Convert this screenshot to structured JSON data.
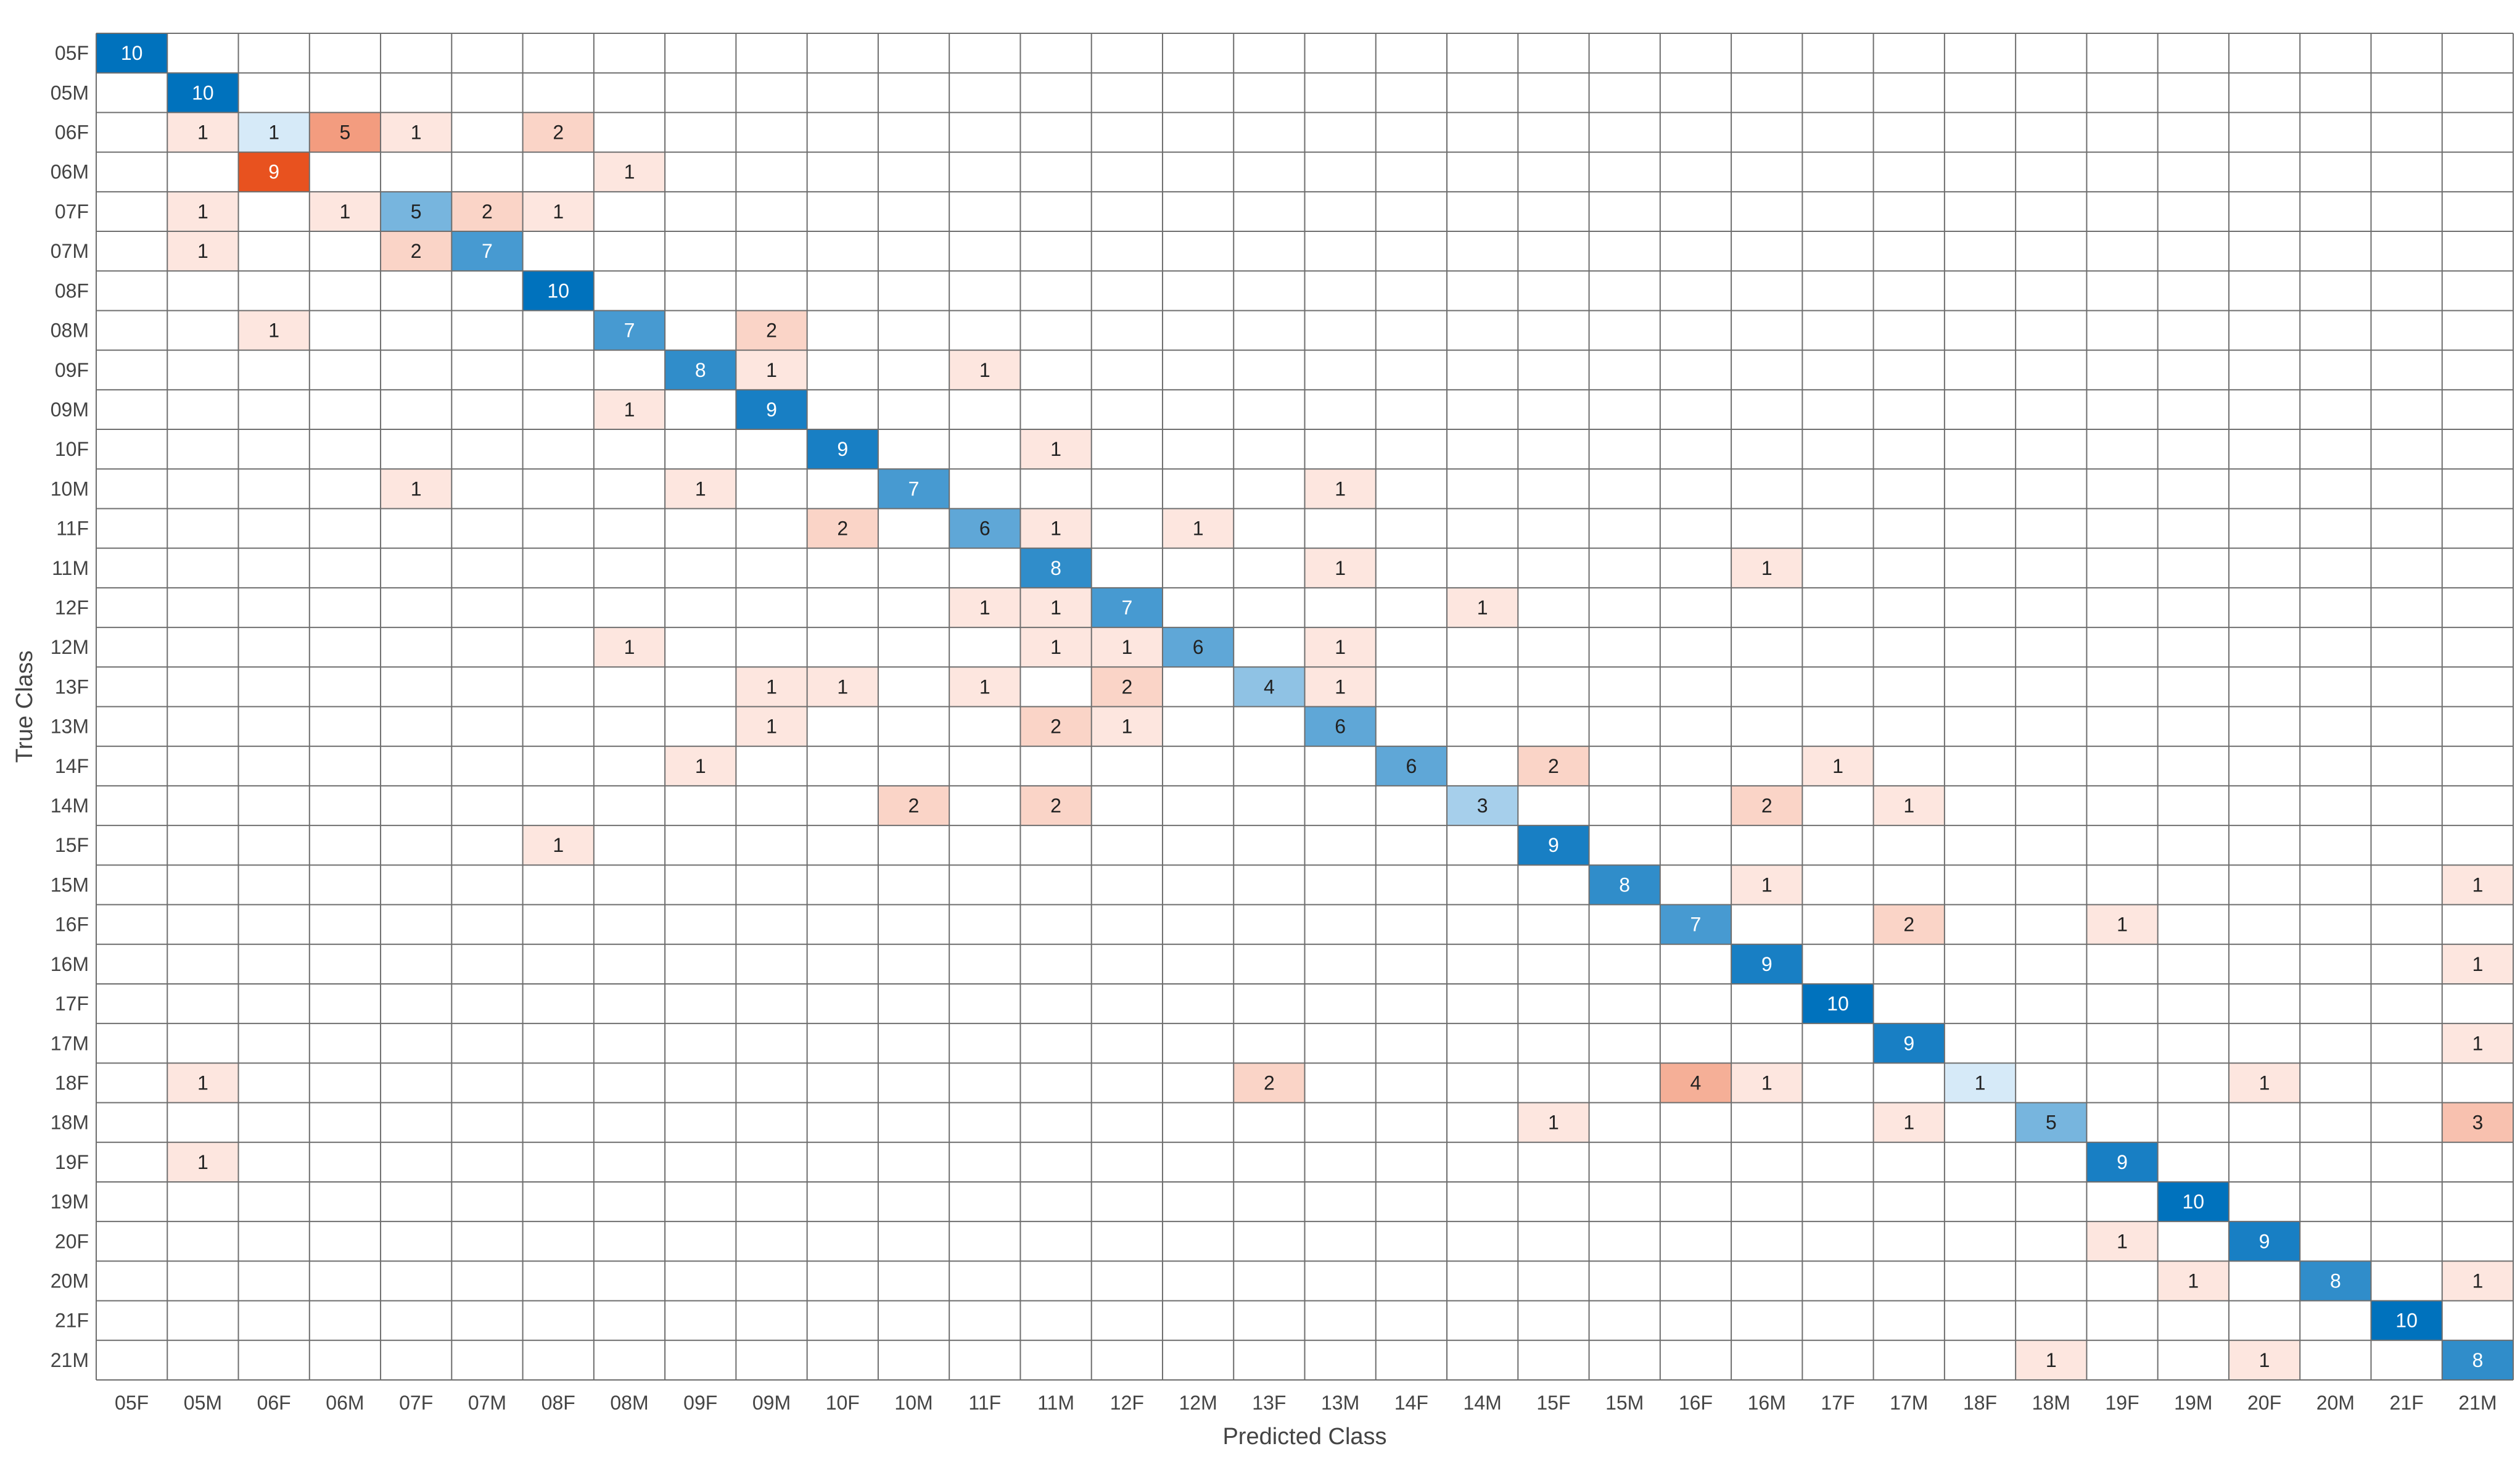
{
  "chart_data": {
    "type": "heatmap",
    "title": "",
    "xlabel": "Predicted Class",
    "ylabel": "True Class",
    "classes": [
      "05F",
      "05M",
      "06F",
      "06M",
      "07F",
      "07M",
      "08F",
      "08M",
      "09F",
      "09M",
      "10F",
      "10M",
      "11F",
      "11M",
      "12F",
      "12M",
      "13F",
      "13M",
      "14F",
      "14M",
      "15F",
      "15M",
      "16F",
      "16M",
      "17F",
      "17M",
      "18F",
      "18M",
      "19F",
      "19M",
      "20F",
      "20M",
      "21F",
      "21M"
    ],
    "cells": [
      {
        "row": "05F",
        "col": "05F",
        "value": 10
      },
      {
        "row": "05M",
        "col": "05M",
        "value": 10
      },
      {
        "row": "06F",
        "col": "05M",
        "value": 1
      },
      {
        "row": "06F",
        "col": "06F",
        "value": 1
      },
      {
        "row": "06F",
        "col": "06M",
        "value": 5
      },
      {
        "row": "06F",
        "col": "07F",
        "value": 1
      },
      {
        "row": "06F",
        "col": "08F",
        "value": 2
      },
      {
        "row": "06M",
        "col": "06F",
        "value": 9
      },
      {
        "row": "06M",
        "col": "08M",
        "value": 1
      },
      {
        "row": "07F",
        "col": "05M",
        "value": 1
      },
      {
        "row": "07F",
        "col": "06M",
        "value": 1
      },
      {
        "row": "07F",
        "col": "07F",
        "value": 5
      },
      {
        "row": "07F",
        "col": "07M",
        "value": 2
      },
      {
        "row": "07F",
        "col": "08F",
        "value": 1
      },
      {
        "row": "07M",
        "col": "05M",
        "value": 1
      },
      {
        "row": "07M",
        "col": "07F",
        "value": 2
      },
      {
        "row": "07M",
        "col": "07M",
        "value": 7
      },
      {
        "row": "08F",
        "col": "08F",
        "value": 10
      },
      {
        "row": "08M",
        "col": "06F",
        "value": 1
      },
      {
        "row": "08M",
        "col": "08M",
        "value": 7
      },
      {
        "row": "08M",
        "col": "09M",
        "value": 2
      },
      {
        "row": "09F",
        "col": "09F",
        "value": 8
      },
      {
        "row": "09F",
        "col": "09M",
        "value": 1
      },
      {
        "row": "09F",
        "col": "11F",
        "value": 1
      },
      {
        "row": "09M",
        "col": "08M",
        "value": 1
      },
      {
        "row": "09M",
        "col": "09M",
        "value": 9
      },
      {
        "row": "10F",
        "col": "10F",
        "value": 9
      },
      {
        "row": "10F",
        "col": "11M",
        "value": 1
      },
      {
        "row": "10M",
        "col": "07F",
        "value": 1
      },
      {
        "row": "10M",
        "col": "09F",
        "value": 1
      },
      {
        "row": "10M",
        "col": "10M",
        "value": 7
      },
      {
        "row": "10M",
        "col": "13M",
        "value": 1
      },
      {
        "row": "11F",
        "col": "10F",
        "value": 2
      },
      {
        "row": "11F",
        "col": "11F",
        "value": 6
      },
      {
        "row": "11F",
        "col": "11M",
        "value": 1
      },
      {
        "row": "11F",
        "col": "12M",
        "value": 1
      },
      {
        "row": "11M",
        "col": "11M",
        "value": 8
      },
      {
        "row": "11M",
        "col": "13M",
        "value": 1
      },
      {
        "row": "11M",
        "col": "16M",
        "value": 1
      },
      {
        "row": "12F",
        "col": "11F",
        "value": 1
      },
      {
        "row": "12F",
        "col": "11M",
        "value": 1
      },
      {
        "row": "12F",
        "col": "12F",
        "value": 7
      },
      {
        "row": "12F",
        "col": "14M",
        "value": 1
      },
      {
        "row": "12M",
        "col": "08M",
        "value": 1
      },
      {
        "row": "12M",
        "col": "11M",
        "value": 1
      },
      {
        "row": "12M",
        "col": "12F",
        "value": 1
      },
      {
        "row": "12M",
        "col": "12M",
        "value": 6
      },
      {
        "row": "12M",
        "col": "13M",
        "value": 1
      },
      {
        "row": "13F",
        "col": "09M",
        "value": 1
      },
      {
        "row": "13F",
        "col": "10F",
        "value": 1
      },
      {
        "row": "13F",
        "col": "11F",
        "value": 1
      },
      {
        "row": "13F",
        "col": "12F",
        "value": 2
      },
      {
        "row": "13F",
        "col": "13F",
        "value": 4
      },
      {
        "row": "13F",
        "col": "13M",
        "value": 1
      },
      {
        "row": "13M",
        "col": "09M",
        "value": 1
      },
      {
        "row": "13M",
        "col": "11M",
        "value": 2
      },
      {
        "row": "13M",
        "col": "12F",
        "value": 1
      },
      {
        "row": "13M",
        "col": "13M",
        "value": 6
      },
      {
        "row": "14F",
        "col": "09F",
        "value": 1
      },
      {
        "row": "14F",
        "col": "14F",
        "value": 6
      },
      {
        "row": "14F",
        "col": "15F",
        "value": 2
      },
      {
        "row": "14F",
        "col": "17F",
        "value": 1
      },
      {
        "row": "14M",
        "col": "10M",
        "value": 2
      },
      {
        "row": "14M",
        "col": "11M",
        "value": 2
      },
      {
        "row": "14M",
        "col": "14M",
        "value": 3
      },
      {
        "row": "14M",
        "col": "16M",
        "value": 2
      },
      {
        "row": "14M",
        "col": "17M",
        "value": 1
      },
      {
        "row": "15F",
        "col": "08F",
        "value": 1
      },
      {
        "row": "15F",
        "col": "15F",
        "value": 9
      },
      {
        "row": "15M",
        "col": "15M",
        "value": 8
      },
      {
        "row": "15M",
        "col": "16M",
        "value": 1
      },
      {
        "row": "15M",
        "col": "21M",
        "value": 1
      },
      {
        "row": "16F",
        "col": "16F",
        "value": 7
      },
      {
        "row": "16F",
        "col": "17M",
        "value": 2
      },
      {
        "row": "16F",
        "col": "19F",
        "value": 1
      },
      {
        "row": "16M",
        "col": "16M",
        "value": 9
      },
      {
        "row": "16M",
        "col": "21M",
        "value": 1
      },
      {
        "row": "17F",
        "col": "17F",
        "value": 10
      },
      {
        "row": "17M",
        "col": "17M",
        "value": 9
      },
      {
        "row": "17M",
        "col": "21M",
        "value": 1
      },
      {
        "row": "18F",
        "col": "05M",
        "value": 1
      },
      {
        "row": "18F",
        "col": "13F",
        "value": 2
      },
      {
        "row": "18F",
        "col": "16F",
        "value": 4
      },
      {
        "row": "18F",
        "col": "16M",
        "value": 1
      },
      {
        "row": "18F",
        "col": "18F",
        "value": 1
      },
      {
        "row": "18F",
        "col": "20F",
        "value": 1
      },
      {
        "row": "18M",
        "col": "15F",
        "value": 1
      },
      {
        "row": "18M",
        "col": "17M",
        "value": 1
      },
      {
        "row": "18M",
        "col": "18M",
        "value": 5
      },
      {
        "row": "18M",
        "col": "21M",
        "value": 3
      },
      {
        "row": "19F",
        "col": "05M",
        "value": 1
      },
      {
        "row": "19F",
        "col": "19F",
        "value": 9
      },
      {
        "row": "19M",
        "col": "19M",
        "value": 10
      },
      {
        "row": "20F",
        "col": "19F",
        "value": 1
      },
      {
        "row": "20F",
        "col": "20F",
        "value": 9
      },
      {
        "row": "20M",
        "col": "19M",
        "value": 1
      },
      {
        "row": "20M",
        "col": "20M",
        "value": 8
      },
      {
        "row": "20M",
        "col": "21M",
        "value": 1
      },
      {
        "row": "21F",
        "col": "21F",
        "value": 10
      },
      {
        "row": "21M",
        "col": "18M",
        "value": 1
      },
      {
        "row": "21M",
        "col": "20F",
        "value": 1
      },
      {
        "row": "21M",
        "col": "21M",
        "value": 8
      }
    ],
    "colors": {
      "diagonal_light": "#d6eaf8",
      "diagonal_dark": "#0072bd",
      "offdiag_light": "#fde6df",
      "offdiag_dark": "#e8521f",
      "grid": "#6e6e6e"
    }
  }
}
